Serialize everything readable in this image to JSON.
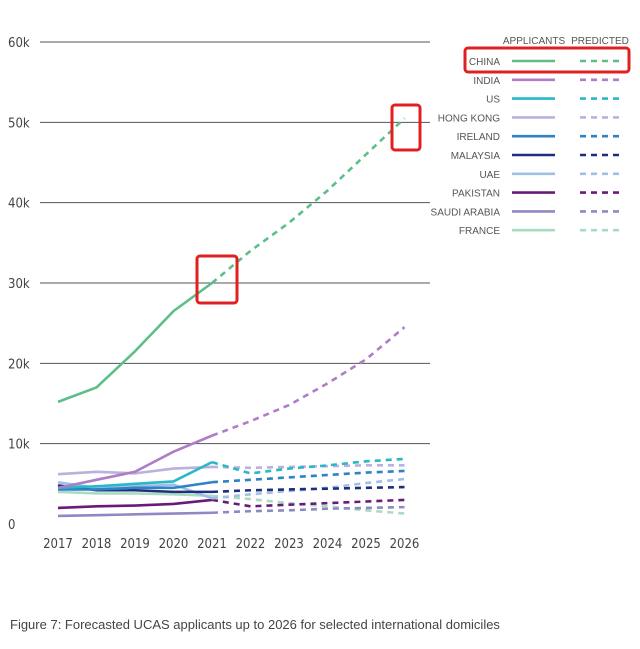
{
  "caption": "Figure 7: Forecasted UCAS applicants up to 2026 for selected international domiciles",
  "chart_data": {
    "type": "line",
    "x": [
      2017,
      2018,
      2019,
      2020,
      2021,
      2022,
      2023,
      2024,
      2025,
      2026
    ],
    "actual_years": [
      2017,
      2018,
      2019,
      2020,
      2021
    ],
    "predicted_years": [
      2021,
      2022,
      2023,
      2024,
      2025,
      2026
    ],
    "ylim": [
      0,
      60000
    ],
    "yticks": [
      0,
      10000,
      20000,
      30000,
      40000,
      50000,
      60000
    ],
    "ytick_labels": [
      "0",
      "10k",
      "20k",
      "30k",
      "40k",
      "50k",
      "60k"
    ],
    "xtick_labels": [
      "2017",
      "2018",
      "2019",
      "2020",
      "2021",
      "2022",
      "2023",
      "2024",
      "2025",
      "2026"
    ],
    "grid": "horizontal",
    "legend_position": "top-right",
    "legend_headers": {
      "actual": "APPLICANTS",
      "predicted": "PREDICTED"
    },
    "series": [
      {
        "name": "CHINA",
        "color": "#5cbf8a",
        "values": [
          15200,
          17000,
          21500,
          26500,
          30000,
          34000,
          37500,
          41500,
          46000,
          50500
        ]
      },
      {
        "name": "INDIA",
        "color": "#b07cc6",
        "values": [
          4500,
          5500,
          6500,
          9000,
          11000,
          12800,
          14800,
          17500,
          20500,
          24500
        ]
      },
      {
        "name": "US",
        "color": "#2ab8c8",
        "values": [
          4500,
          4700,
          5000,
          5300,
          7700,
          6300,
          6900,
          7300,
          7800,
          8100
        ]
      },
      {
        "name": "HONG KONG",
        "color": "#b8b2dc",
        "values": [
          6200,
          6500,
          6300,
          6900,
          7100,
          7000,
          7100,
          7200,
          7300,
          7300
        ]
      },
      {
        "name": "IRELAND",
        "color": "#2f82c6",
        "values": [
          4300,
          4300,
          4500,
          4500,
          5200,
          5500,
          5800,
          6100,
          6400,
          6600
        ]
      },
      {
        "name": "MALAYSIA",
        "color": "#1f2e7a",
        "values": [
          4800,
          4200,
          4200,
          4000,
          4000,
          4200,
          4300,
          4400,
          4500,
          4600
        ]
      },
      {
        "name": "UAE",
        "color": "#9fc0e6",
        "values": [
          5200,
          4500,
          4700,
          4900,
          3200,
          3700,
          4100,
          4500,
          5100,
          5600
        ]
      },
      {
        "name": "PAKISTAN",
        "color": "#6a1b7a",
        "values": [
          2000,
          2200,
          2300,
          2500,
          3000,
          2200,
          2400,
          2600,
          2800,
          3000
        ]
      },
      {
        "name": "SAUDI ARABIA",
        "color": "#8e89c2",
        "values": [
          1000,
          1100,
          1200,
          1300,
          1400,
          1600,
          1700,
          1900,
          2000,
          2100
        ]
      },
      {
        "name": "FRANCE",
        "color": "#a8dcc0",
        "values": [
          4000,
          3800,
          3800,
          3700,
          3500,
          3100,
          2600,
          2200,
          1700,
          1300
        ]
      }
    ]
  }
}
